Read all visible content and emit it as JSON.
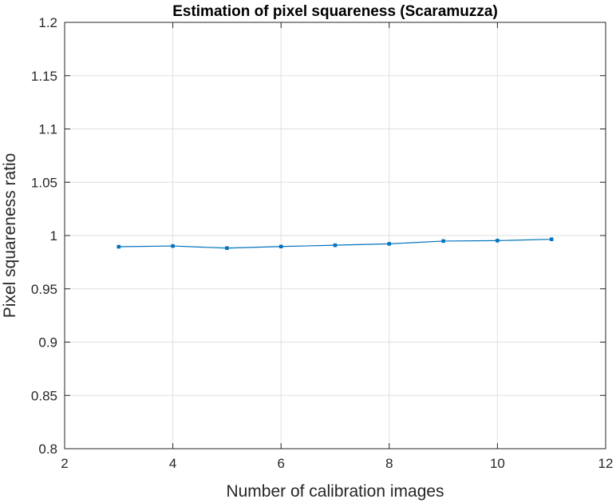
{
  "chart_data": {
    "type": "line",
    "title": "Estimation of pixel squareness (Scaramuzza)",
    "xlabel": "Number of calibration images",
    "ylabel": "Pixel squareness ratio",
    "xlim": [
      2,
      12
    ],
    "ylim": [
      0.8,
      1.2
    ],
    "xticks": [
      2,
      4,
      6,
      8,
      10,
      12
    ],
    "yticks": [
      0.8,
      0.85,
      0.9,
      0.95,
      1,
      1.05,
      1.1,
      1.15,
      1.2
    ],
    "grid": true,
    "box": true,
    "series": [
      {
        "color": "#0072BD",
        "marker": "square",
        "x": [
          3,
          4,
          5,
          6,
          7,
          8,
          9,
          10,
          11
        ],
        "y": [
          0.9895,
          0.9902,
          0.9882,
          0.9897,
          0.9909,
          0.9922,
          0.9948,
          0.9952,
          0.9965
        ]
      }
    ]
  }
}
